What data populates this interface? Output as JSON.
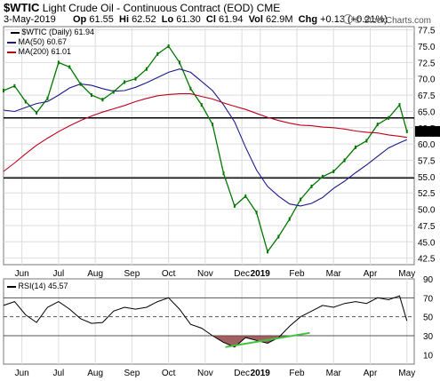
{
  "header": {
    "symbol": "$WTIC",
    "title": "Light Crude Oil - Continuous Contract (EOD)",
    "exchange": "CME",
    "date": "3-May-2019",
    "open_label": "Op",
    "open": "61.55",
    "high_label": "Hi",
    "high": "62.52",
    "low_label": "Lo",
    "low": "61.30",
    "close_label": "Cl",
    "close": "61.94",
    "vol_label": "Vol",
    "vol": "62.9M",
    "chg_label": "Chg",
    "chg": "+0.13 (+0.21%)",
    "copyright": "© StockCharts.com"
  },
  "legend": {
    "price": "$WTIC (Daily) 61.94",
    "ma50": "MA(50) 60.67",
    "ma200": "MA(200) 61.01",
    "rsi": "RSI(14) 45.57"
  },
  "colors": {
    "price": "#007700",
    "ma50": "#1a1a8c",
    "ma200": "#c0001a",
    "rsi": "#000000",
    "rsi_trend": "#3cc43c",
    "rsi_oversold_fill": "#8b3a3a",
    "grid": "#dddddd"
  },
  "chart_data": [
    {
      "type": "line",
      "title": "$WTIC (Daily) 61.94",
      "ylim": [
        41.5,
        78
      ],
      "y_ticks": [
        "42.5",
        "45.0",
        "47.5",
        "50.0",
        "52.5",
        "55.0",
        "57.5",
        "60.0",
        "62.5",
        "65.0",
        "67.5",
        "70.0",
        "72.5",
        "75.0",
        "77.5"
      ],
      "x_ticks": [
        "Jun",
        "Jul",
        "Aug",
        "Sep",
        "Oct",
        "Nov",
        "Dec",
        "2019",
        "Feb",
        "Mar",
        "Apr",
        "May"
      ],
      "x_tick_pos": [
        0.5,
        1.5,
        2.5,
        3.5,
        4.5,
        5.5,
        6.5,
        7.0,
        8.0,
        9.0,
        10.0,
        11.0
      ],
      "x": [
        0,
        0.3,
        0.6,
        0.9,
        1.2,
        1.5,
        1.8,
        2.1,
        2.4,
        2.7,
        3.0,
        3.3,
        3.6,
        3.9,
        4.2,
        4.5,
        4.8,
        5.1,
        5.4,
        5.7,
        6.0,
        6.3,
        6.6,
        6.9,
        7.2,
        7.5,
        7.8,
        8.1,
        8.4,
        8.7,
        9.0,
        9.3,
        9.6,
        9.9,
        10.2,
        10.5,
        10.8,
        11.0
      ],
      "series": [
        {
          "name": "$WTIC",
          "values": [
            68.2,
            68.9,
            66.5,
            64.8,
            67.0,
            72.5,
            71.8,
            69.2,
            67.5,
            66.8,
            68.0,
            69.5,
            70.0,
            71.5,
            73.8,
            75.0,
            72.5,
            68.5,
            66.0,
            63.0,
            55.5,
            50.5,
            52.0,
            49.5,
            43.5,
            45.8,
            48.5,
            51.5,
            53.5,
            55.0,
            55.8,
            57.5,
            59.5,
            60.5,
            63.0,
            64.0,
            66.0,
            61.94
          ]
        },
        {
          "name": "MA(50)",
          "values": [
            65.2,
            65.0,
            65.6,
            66.2,
            66.5,
            67.5,
            68.6,
            69.2,
            69.0,
            68.5,
            68.1,
            68.2,
            68.7,
            69.4,
            70.2,
            71.0,
            71.5,
            71.0,
            69.6,
            68.2,
            66.0,
            63.4,
            59.5,
            56.0,
            53.5,
            52.0,
            50.8,
            50.5,
            50.9,
            51.8,
            53.2,
            54.3,
            55.6,
            56.8,
            58.1,
            59.4,
            60.2,
            60.67
          ]
        },
        {
          "name": "MA(200)",
          "values": [
            55.8,
            57.1,
            58.5,
            59.8,
            60.9,
            61.9,
            62.8,
            63.6,
            64.3,
            64.9,
            65.4,
            65.9,
            66.5,
            67.0,
            67.4,
            67.6,
            67.7,
            67.7,
            67.3,
            66.9,
            66.3,
            65.8,
            65.3,
            64.7,
            64.1,
            63.6,
            63.2,
            62.9,
            62.8,
            62.6,
            62.5,
            62.3,
            62.0,
            61.8,
            61.7,
            61.4,
            61.2,
            61.01
          ]
        }
      ],
      "horizontal_lines": [
        64.0,
        54.8
      ]
    },
    {
      "type": "line",
      "title": "RSI(14) 45.57",
      "ylim": [
        0,
        90
      ],
      "y_ticks": [
        "10",
        "30",
        "50",
        "70",
        "90"
      ],
      "reference_lines": [
        30,
        50,
        70
      ],
      "x": [
        0,
        0.3,
        0.6,
        0.9,
        1.2,
        1.5,
        1.8,
        2.1,
        2.4,
        2.7,
        3.0,
        3.3,
        3.6,
        3.9,
        4.2,
        4.5,
        4.8,
        5.1,
        5.4,
        5.7,
        6.0,
        6.3,
        6.6,
        6.9,
        7.2,
        7.5,
        7.8,
        8.1,
        8.4,
        8.7,
        9.0,
        9.3,
        9.6,
        9.9,
        10.2,
        10.5,
        10.8,
        11.0
      ],
      "series": [
        {
          "name": "RSI(14)",
          "values": [
            62,
            66,
            52,
            44,
            60,
            66,
            58,
            48,
            43,
            44,
            56,
            60,
            58,
            60,
            66,
            70,
            58,
            42,
            38,
            30,
            23,
            18,
            28,
            25,
            22,
            28,
            40,
            50,
            56,
            62,
            60,
            64,
            66,
            64,
            70,
            68,
            72,
            45.57
          ]
        }
      ],
      "trendline": {
        "x": [
          6.05,
          8.35
        ],
        "y": [
          18,
          33
        ]
      }
    }
  ]
}
